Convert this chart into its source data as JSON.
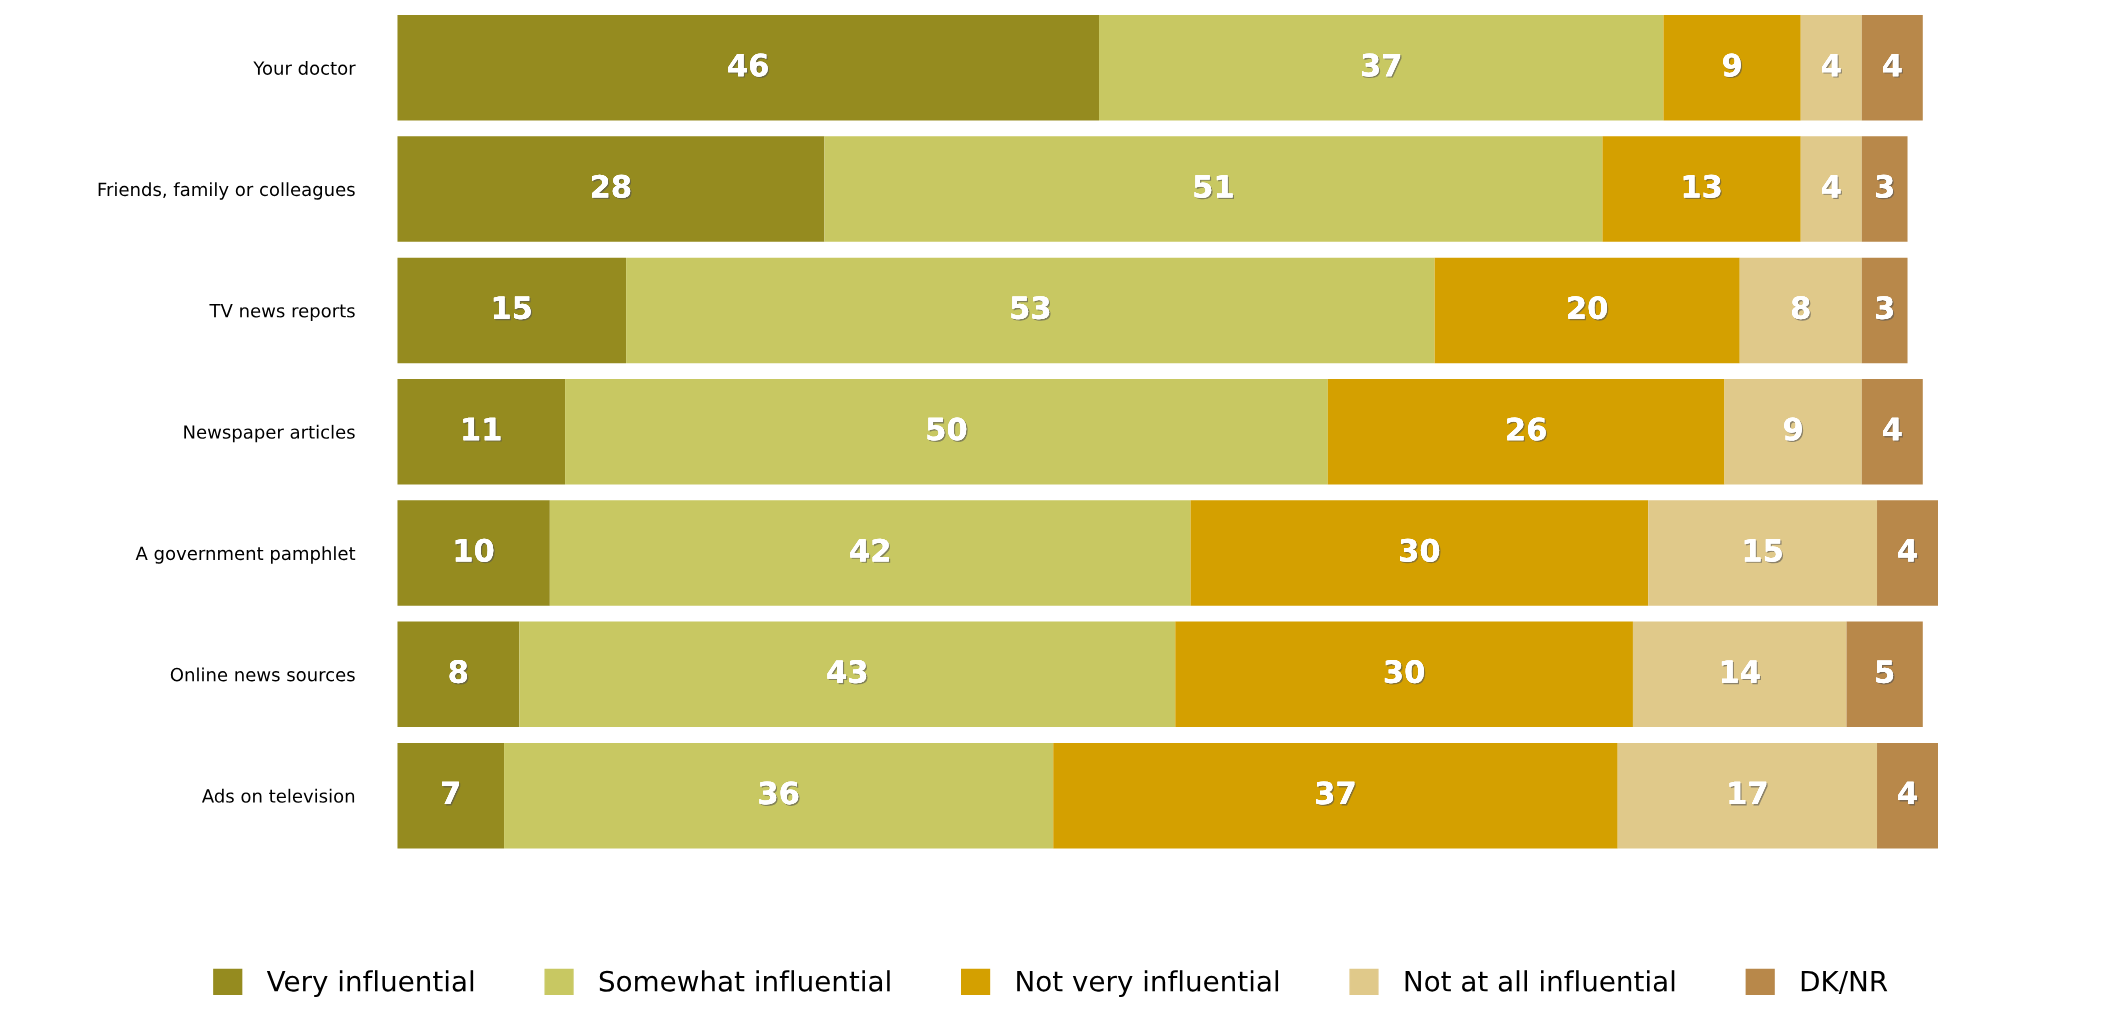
{
  "chart_data": {
    "type": "bar",
    "orientation": "horizontal",
    "stacked": true,
    "data_labels": true,
    "legend": "bottom",
    "grid": false,
    "tick_labels": "y",
    "categories": [
      "Your doctor",
      "Friends, family or colleagues",
      "TV news reports",
      "Newspaper articles",
      "A government pamphlet",
      "Online news sources",
      "Ads on television"
    ],
    "series": [
      {
        "name": "Very influential",
        "color": "#958b1f",
        "values": [
          46,
          28,
          15,
          11,
          10,
          8,
          7
        ]
      },
      {
        "name": "Somewhat influential",
        "color": "#c8c862",
        "values": [
          37,
          51,
          53,
          50,
          42,
          43,
          36
        ]
      },
      {
        "name": "Not very influential",
        "color": "#d4a000",
        "values": [
          9,
          13,
          20,
          26,
          30,
          30,
          37
        ]
      },
      {
        "name": "Not at all influential",
        "color": "#e0c98a",
        "values": [
          4,
          4,
          8,
          9,
          15,
          14,
          17
        ]
      },
      {
        "name": "DK/NR",
        "color": "#b8884a",
        "values": [
          4,
          3,
          3,
          4,
          4,
          5,
          4
        ]
      }
    ]
  }
}
